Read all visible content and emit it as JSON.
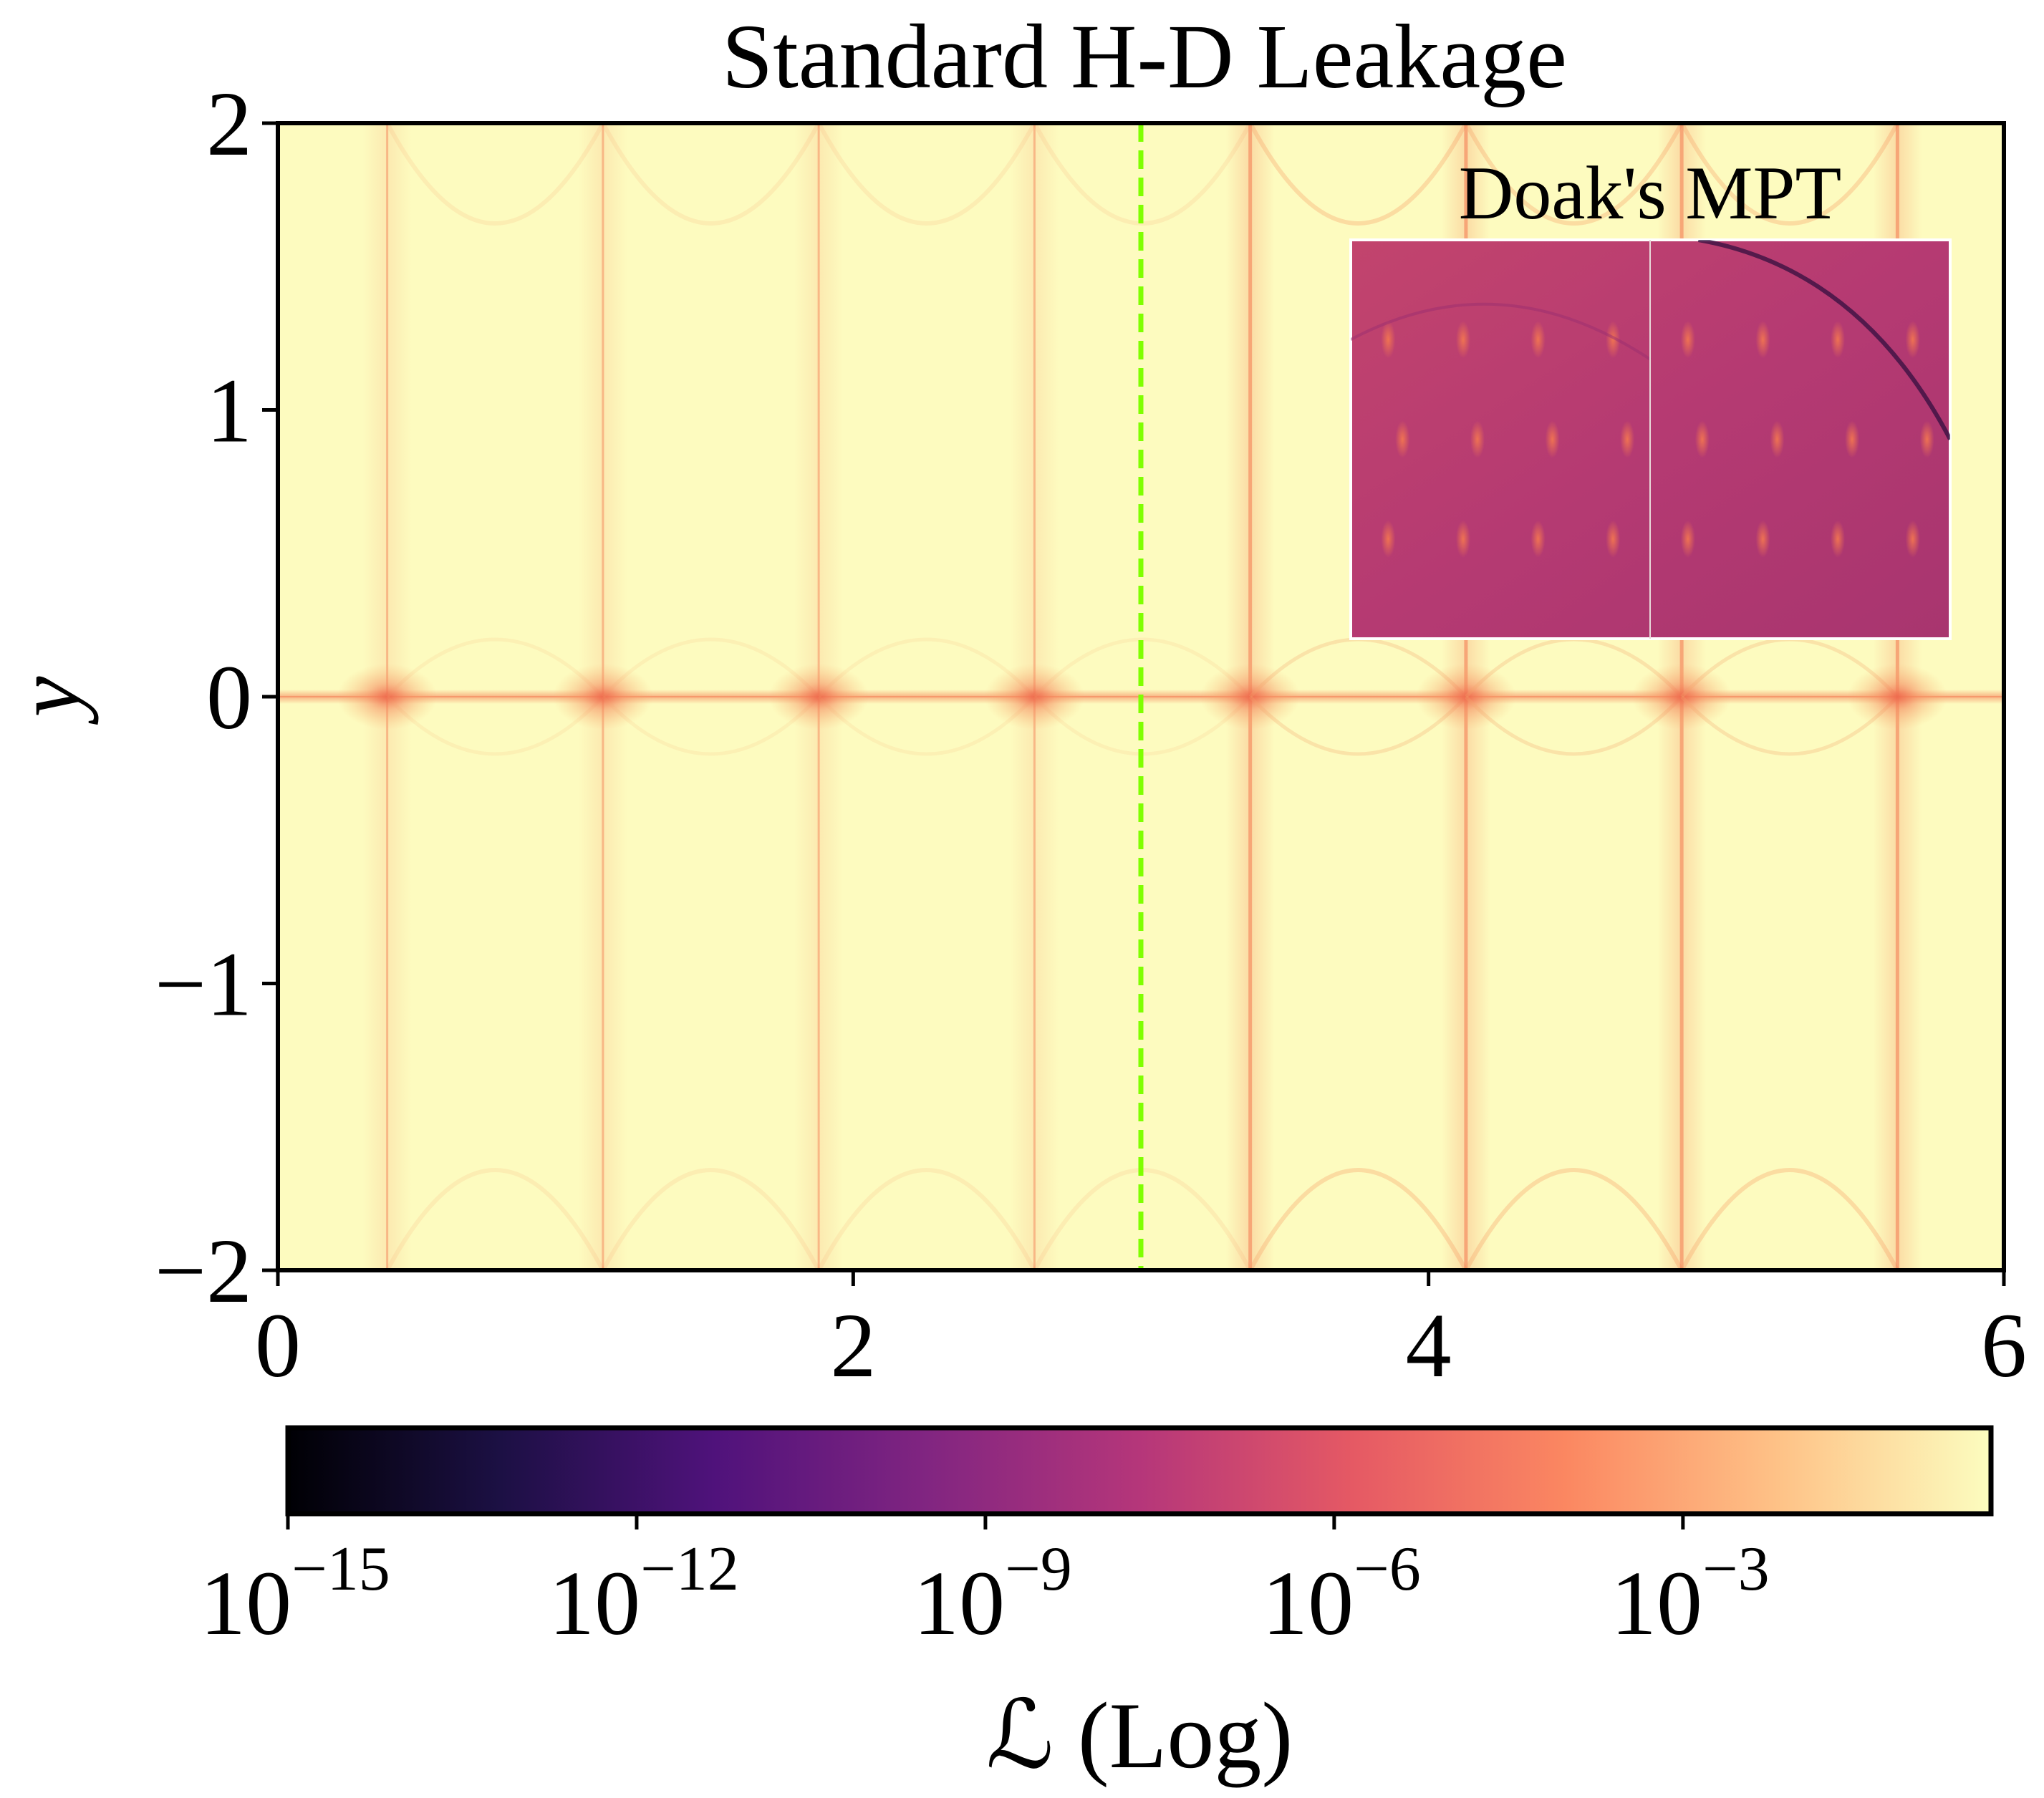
{
  "chart_data": {
    "type": "heatmap",
    "title": "Standard H-D Leakage",
    "xlabel": "",
    "ylabel": "y",
    "xlim": [
      0,
      6
    ],
    "ylim": [
      -2,
      2
    ],
    "x_ticks": [
      0,
      2,
      4,
      6
    ],
    "x_tick_labels": [
      "0",
      "2",
      "4",
      "6"
    ],
    "y_ticks": [
      2,
      1,
      0,
      -1,
      -2
    ],
    "y_tick_labels": [
      "2",
      "1",
      "0",
      "−1",
      "−2"
    ],
    "grid": false,
    "vertical_marker": {
      "x": 3.0,
      "style": "dashed",
      "color": "#7fff00"
    },
    "resonance_x": [
      0.38,
      1.13,
      1.88,
      2.63,
      3.38,
      4.13,
      4.88,
      5.63
    ],
    "resonance_y": 0,
    "inset": {
      "title": "Doak's MPT",
      "location": "top-right",
      "panels": 2
    },
    "colorbar": {
      "label": "ℒ (Log)",
      "scale": "log",
      "ticks": [
        {
          "base": "10",
          "exp": "−15"
        },
        {
          "base": "10",
          "exp": "−12"
        },
        {
          "base": "10",
          "exp": "−9"
        },
        {
          "base": "10",
          "exp": "−6"
        },
        {
          "base": "10",
          "exp": "−3"
        }
      ],
      "colormap": "magma",
      "colormap_stops": [
        "#000004",
        "#1c1044",
        "#4f127b",
        "#812581",
        "#b5367a",
        "#e55964",
        "#fb8761",
        "#fec287",
        "#fcfdbf"
      ]
    },
    "background_color": "#fdfbbf",
    "resonance_color": "#f47a52"
  }
}
